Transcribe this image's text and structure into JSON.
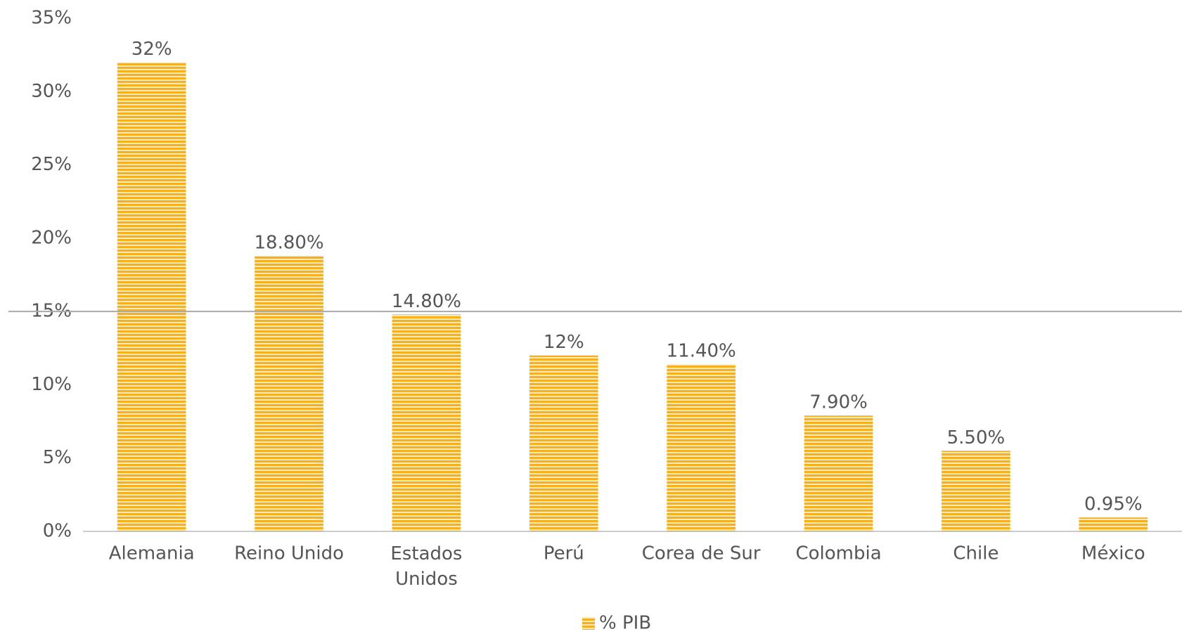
{
  "chart_data": {
    "type": "bar",
    "categories": [
      "Alemania",
      "Reino Unido",
      "Estados Unidos",
      "Perú",
      "Corea de Sur",
      "Colombia",
      "Chile",
      "México"
    ],
    "series": [
      {
        "name": "% PIB",
        "color": "#f5b020",
        "values": [
          32,
          18.8,
          14.8,
          12,
          11.4,
          7.9,
          5.5,
          0.95
        ],
        "value_labels": [
          "32%",
          "18.80%",
          "14.80%",
          "12%",
          "11.40%",
          "7.90%",
          "5.50%",
          "0.95%"
        ]
      }
    ],
    "ylim": [
      0,
      35
    ],
    "yticks": [
      {
        "value": 0,
        "label": "0%"
      },
      {
        "value": 5,
        "label": "5%"
      },
      {
        "value": 10,
        "label": "10%"
      },
      {
        "value": 15,
        "label": "15%"
      },
      {
        "value": 20,
        "label": "20%"
      },
      {
        "value": 25,
        "label": "25%"
      },
      {
        "value": 30,
        "label": "30%"
      },
      {
        "value": 35,
        "label": "35%"
      }
    ],
    "reference_line": 15,
    "grid": false,
    "legend": "bottom"
  }
}
